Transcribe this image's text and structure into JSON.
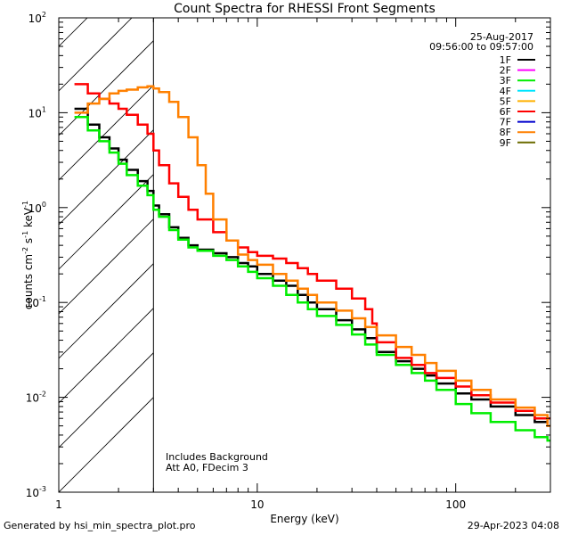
{
  "chart_data": {
    "type": "line",
    "title": "Count Spectra for RHESSI Front Segments",
    "xlabel": "Energy (keV)",
    "ylabel": "counts cm",
    "ylabel_sup1": "-2",
    "ylabel_mid": " s",
    "ylabel_sup2": "-1",
    "ylabel_end": " keV",
    "ylabel_sup3": "-1",
    "x_scale": "log",
    "y_scale": "log",
    "xlim": [
      1,
      300
    ],
    "ylim": [
      0.001,
      100
    ],
    "x_ticks": [
      {
        "value": 1,
        "label": "1"
      },
      {
        "value": 10,
        "label": "10"
      },
      {
        "value": 100,
        "label": "100"
      }
    ],
    "y_ticks": [
      {
        "value": 0.001,
        "base": "10",
        "exp": "-3"
      },
      {
        "value": 0.01,
        "base": "10",
        "exp": "-2"
      },
      {
        "value": 0.1,
        "base": "10",
        "exp": "-1"
      },
      {
        "value": 1,
        "base": "10",
        "exp": "0"
      },
      {
        "value": 10,
        "base": "10",
        "exp": "1"
      },
      {
        "value": 100,
        "base": "10",
        "exp": "2"
      }
    ],
    "hatched_region_xmax": 3,
    "annotation_date": "25-Aug-2017",
    "annotation_time": "09:56:00 to 09:57:00",
    "annotation_notes": [
      "Includes Background",
      "Att A0, FDecim 3"
    ],
    "legend": [
      {
        "name": "1F",
        "color": "#000000"
      },
      {
        "name": "2F",
        "color": "#ff00ff"
      },
      {
        "name": "3F",
        "color": "#00ee00"
      },
      {
        "name": "4F",
        "color": "#00e5ff"
      },
      {
        "name": "5F",
        "color": "#ffb000"
      },
      {
        "name": "6F",
        "color": "#ff0000"
      },
      {
        "name": "7F",
        "color": "#0000cc"
      },
      {
        "name": "8F",
        "color": "#ff8000"
      },
      {
        "name": "9F",
        "color": "#6b6b00"
      }
    ],
    "series": [
      {
        "name": "1F",
        "color": "#000000",
        "x": [
          1.2,
          1.4,
          1.6,
          1.8,
          2.0,
          2.2,
          2.5,
          2.8,
          3.0,
          3.2,
          3.6,
          4.0,
          4.5,
          5.0,
          6.0,
          7.0,
          8.0,
          9.0,
          10,
          12,
          14,
          16,
          18,
          20,
          25,
          30,
          35,
          40,
          50,
          60,
          70,
          80,
          100,
          120,
          150,
          200,
          250,
          290
        ],
        "values": [
          11,
          7.5,
          5.5,
          4.2,
          3.2,
          2.5,
          1.9,
          1.5,
          1.05,
          0.85,
          0.62,
          0.48,
          0.4,
          0.36,
          0.33,
          0.3,
          0.26,
          0.24,
          0.2,
          0.17,
          0.15,
          0.12,
          0.1,
          0.085,
          0.065,
          0.052,
          0.042,
          0.03,
          0.024,
          0.02,
          0.017,
          0.014,
          0.011,
          0.0095,
          0.008,
          0.0065,
          0.0055,
          0.006
        ]
      },
      {
        "name": "3F",
        "color": "#00ee00",
        "x": [
          1.2,
          1.4,
          1.6,
          1.8,
          2.0,
          2.2,
          2.5,
          2.8,
          3.0,
          3.2,
          3.6,
          4.0,
          4.5,
          5.0,
          6.0,
          7.0,
          8.0,
          9.0,
          10,
          12,
          14,
          16,
          18,
          20,
          25,
          30,
          35,
          40,
          50,
          60,
          70,
          80,
          100,
          120,
          150,
          200,
          250,
          290
        ],
        "values": [
          9.0,
          6.5,
          5.0,
          3.8,
          2.9,
          2.2,
          1.7,
          1.35,
          0.95,
          0.8,
          0.58,
          0.46,
          0.38,
          0.35,
          0.31,
          0.28,
          0.24,
          0.21,
          0.18,
          0.15,
          0.12,
          0.1,
          0.085,
          0.072,
          0.058,
          0.046,
          0.036,
          0.028,
          0.022,
          0.018,
          0.015,
          0.012,
          0.0085,
          0.0068,
          0.0055,
          0.0045,
          0.0038,
          0.0035
        ]
      },
      {
        "name": "6F",
        "color": "#ff0000",
        "x": [
          1.2,
          1.4,
          1.6,
          1.8,
          2.0,
          2.2,
          2.5,
          2.8,
          3.0,
          3.2,
          3.6,
          4.0,
          4.5,
          5.0,
          6.0,
          7.0,
          8.0,
          9.0,
          10,
          12,
          14,
          16,
          18,
          20,
          25,
          30,
          35,
          38,
          40,
          50,
          60,
          70,
          80,
          100,
          120,
          150,
          200,
          250,
          290
        ],
        "values": [
          20,
          16,
          14,
          12.5,
          11,
          9.5,
          7.5,
          6.0,
          4.0,
          2.8,
          1.8,
          1.3,
          0.95,
          0.75,
          0.55,
          0.45,
          0.38,
          0.34,
          0.31,
          0.29,
          0.26,
          0.23,
          0.2,
          0.17,
          0.14,
          0.11,
          0.085,
          0.06,
          0.038,
          0.026,
          0.022,
          0.018,
          0.016,
          0.013,
          0.0105,
          0.0088,
          0.0072,
          0.006,
          0.006
        ]
      },
      {
        "name": "8F",
        "color": "#ff8000",
        "x": [
          1.2,
          1.4,
          1.6,
          1.8,
          2.0,
          2.2,
          2.5,
          2.8,
          3.0,
          3.2,
          3.6,
          4.0,
          4.5,
          5.0,
          5.5,
          6.0,
          7.0,
          8.0,
          9.0,
          10,
          12,
          14,
          16,
          18,
          20,
          25,
          30,
          35,
          40,
          50,
          60,
          70,
          80,
          100,
          120,
          150,
          200,
          250,
          290
        ],
        "values": [
          10,
          12.5,
          14,
          16,
          17,
          17.5,
          18.5,
          19,
          18,
          16.5,
          13,
          9.0,
          5.5,
          2.8,
          1.4,
          0.75,
          0.45,
          0.32,
          0.28,
          0.25,
          0.2,
          0.17,
          0.14,
          0.12,
          0.1,
          0.082,
          0.068,
          0.055,
          0.045,
          0.034,
          0.028,
          0.023,
          0.019,
          0.015,
          0.012,
          0.0095,
          0.0078,
          0.0065,
          0.005
        ]
      }
    ]
  },
  "footer": {
    "generated_by": "Generated by hsi_min_spectra_plot.pro",
    "timestamp": "29-Apr-2023 04:08"
  }
}
